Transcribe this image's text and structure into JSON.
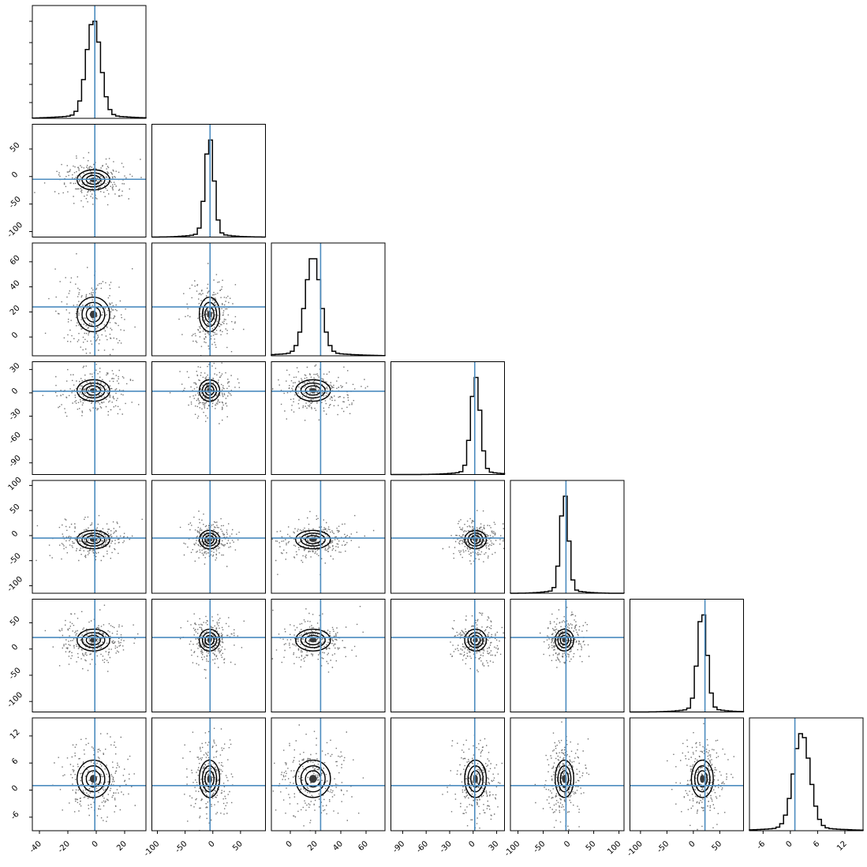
{
  "chart_data": {
    "type": "corner",
    "title": "",
    "truth_color": "#4c8cbf",
    "parameters": [
      {
        "xlim": [
          -45,
          35
        ],
        "xticks": [
          -40,
          -20,
          0,
          20
        ],
        "yticks": [
          -100,
          -50,
          0,
          50
        ],
        "truth": -1,
        "mean": -2,
        "sd": 5,
        "peak": 0.86
      },
      {
        "xlim": [
          -110,
          95
        ],
        "xticks": [
          -100,
          -50,
          0,
          50
        ],
        "yticks": [
          0,
          20,
          40,
          60
        ],
        "truth": -5,
        "mean": -6,
        "sd": 8,
        "peak": 0.86
      },
      {
        "xlim": [
          -15,
          75
        ],
        "xticks": [
          0,
          20,
          40,
          60
        ],
        "yticks": [
          -90,
          -60,
          -30,
          0,
          30
        ],
        "truth": 24,
        "mean": 18,
        "sd": 6,
        "peak": 0.86
      },
      {
        "xlim": [
          -105,
          40
        ],
        "xticks": [
          -90,
          -60,
          -30,
          0,
          30
        ],
        "yticks": [
          -100,
          -50,
          0,
          50,
          100
        ],
        "truth": 2,
        "mean": 3,
        "sd": 6,
        "peak": 0.86
      },
      {
        "xlim": [
          -115,
          110
        ],
        "xticks": [
          -100,
          -50,
          0,
          50,
          100
        ],
        "yticks": [
          -100,
          -50,
          0,
          50
        ],
        "truth": -5,
        "mean": -8,
        "sd": 8,
        "peak": 0.86
      },
      {
        "xlim": [
          -120,
          95
        ],
        "xticks": [
          -100,
          -50,
          0,
          50
        ],
        "yticks": [
          -6,
          0,
          6,
          12
        ],
        "truth": 22,
        "mean": 17,
        "sd": 9,
        "peak": 0.86
      },
      {
        "xlim": [
          -9,
          16
        ],
        "xticks": [
          -6,
          0,
          6,
          12
        ],
        "yticks": [],
        "truth": 1,
        "mean": 2.5,
        "sd": 1.8,
        "peak": 0.86
      }
    ],
    "row_truth": [
      -1,
      -5,
      24,
      2,
      -5,
      22,
      1
    ],
    "row_ylim": [
      [
        0,
        1
      ],
      [
        -110,
        95
      ],
      [
        -15,
        75
      ],
      [
        -105,
        40
      ],
      [
        -115,
        110
      ],
      [
        -120,
        95
      ],
      [
        -9,
        16
      ]
    ],
    "row_yticks": [
      [],
      [
        -100,
        -50,
        0,
        50
      ],
      [
        0,
        20,
        40,
        60
      ],
      [
        -90,
        -60,
        -30,
        0,
        30
      ],
      [
        -100,
        -50,
        0,
        50,
        100
      ],
      [
        -100,
        -50,
        0,
        50
      ],
      [
        -6,
        0,
        6,
        12
      ]
    ],
    "x_tick_labels_bottom": [
      [
        "-40",
        "-20",
        "0",
        "20"
      ],
      [
        "-100",
        "-50",
        "0",
        "50"
      ],
      [
        "0",
        "20",
        "40",
        "60"
      ],
      [
        "-90",
        "-60",
        "-30",
        "0",
        "30"
      ],
      [
        "-100",
        "-50",
        "0",
        "50",
        "100"
      ],
      [
        "-100",
        "-50",
        "0",
        "50"
      ],
      [
        "-6",
        "0",
        "6",
        "12"
      ]
    ],
    "y_tick_labels_left": [
      [],
      [
        "-100",
        "-50",
        "0",
        "50"
      ],
      [
        "0",
        "20",
        "40",
        "60"
      ],
      [
        "-90",
        "-60",
        "-30",
        "0",
        "30"
      ],
      [
        "-100",
        "-50",
        "0",
        "50",
        "100"
      ],
      [
        "-100",
        "-50",
        "0",
        "50"
      ],
      [
        "-6",
        "0",
        "6",
        "12"
      ]
    ]
  }
}
